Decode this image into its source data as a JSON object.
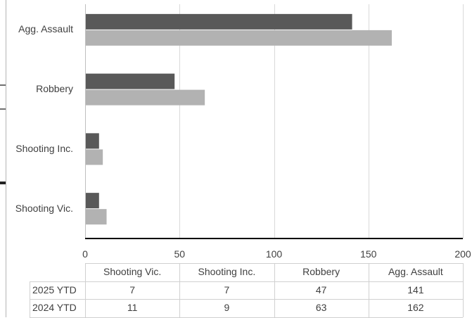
{
  "chart_data": {
    "type": "bar",
    "orientation": "horizontal",
    "categories": [
      "Shooting Vic.",
      "Shooting Inc.",
      "Robbery",
      "Agg. Assault"
    ],
    "series": [
      {
        "name": "2025 YTD",
        "values": [
          7,
          7,
          47,
          141
        ],
        "color": "#595959"
      },
      {
        "name": "2024 YTD",
        "values": [
          11,
          9,
          63,
          162
        ],
        "color": "#b2b2b2"
      }
    ],
    "xlim": [
      0,
      200
    ],
    "x_ticks": [
      "0",
      "50",
      "100",
      "150",
      "200"
    ],
    "gridlines": true,
    "legend": "data-table",
    "title": "",
    "xlabel": "",
    "ylabel": ""
  }
}
